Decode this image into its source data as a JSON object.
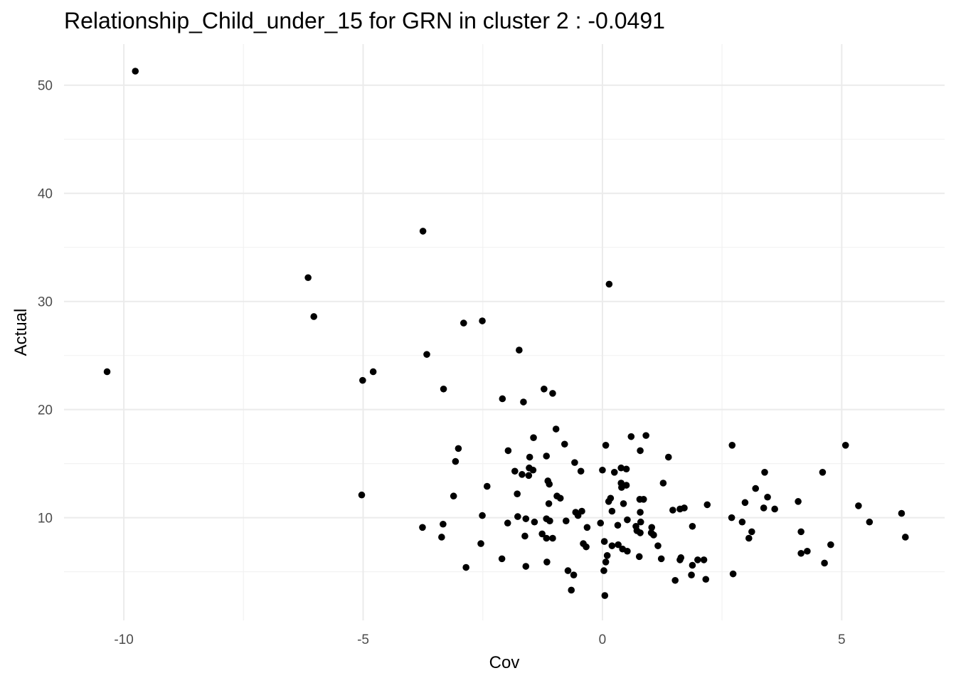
{
  "chart_data": {
    "type": "scatter",
    "title": "Relationship_Child_under_15 for GRN in cluster 2 : -0.0491",
    "xlabel": "Cov",
    "ylabel": "Actual",
    "xlim": [
      -11.25,
      7.15
    ],
    "ylim": [
      0.5,
      53.8
    ],
    "x_ticks": [
      -10,
      -5,
      0,
      5
    ],
    "x_tick_labels": [
      "-10",
      "-5",
      "0",
      "5"
    ],
    "y_ticks": [
      10,
      20,
      30,
      40,
      50
    ],
    "y_tick_labels": [
      "10",
      "20",
      "30",
      "40",
      "50"
    ],
    "grid": true,
    "point_color": "#000000",
    "points": [
      {
        "x": -9.76,
        "y": 51.3
      },
      {
        "x": -10.35,
        "y": 23.5
      },
      {
        "x": -6.15,
        "y": 32.2
      },
      {
        "x": -6.03,
        "y": 28.6
      },
      {
        "x": -5.01,
        "y": 22.7
      },
      {
        "x": -4.79,
        "y": 23.5
      },
      {
        "x": -5.03,
        "y": 12.1
      },
      {
        "x": -3.75,
        "y": 36.5
      },
      {
        "x": -3.67,
        "y": 25.1
      },
      {
        "x": -3.32,
        "y": 21.9
      },
      {
        "x": -2.9,
        "y": 28.0
      },
      {
        "x": -2.51,
        "y": 28.2
      },
      {
        "x": -1.74,
        "y": 25.5
      },
      {
        "x": -2.09,
        "y": 21.0
      },
      {
        "x": -1.65,
        "y": 20.7
      },
      {
        "x": -1.22,
        "y": 21.9
      },
      {
        "x": -1.04,
        "y": 21.5
      },
      {
        "x": 0.14,
        "y": 31.6
      },
      {
        "x": -0.97,
        "y": 18.2
      },
      {
        "x": -1.44,
        "y": 17.4
      },
      {
        "x": -0.79,
        "y": 16.8
      },
      {
        "x": -1.97,
        "y": 16.2
      },
      {
        "x": -1.52,
        "y": 15.6
      },
      {
        "x": -1.17,
        "y": 15.7
      },
      {
        "x": -1.53,
        "y": 14.6
      },
      {
        "x": -1.45,
        "y": 14.4
      },
      {
        "x": -1.83,
        "y": 14.3
      },
      {
        "x": -1.68,
        "y": 14.0
      },
      {
        "x": -1.54,
        "y": 13.9
      },
      {
        "x": -3.01,
        "y": 16.4
      },
      {
        "x": -3.07,
        "y": 15.2
      },
      {
        "x": -2.41,
        "y": 12.9
      },
      {
        "x": -3.11,
        "y": 12.0
      },
      {
        "x": -1.78,
        "y": 12.2
      },
      {
        "x": -1.14,
        "y": 13.4
      },
      {
        "x": -1.11,
        "y": 13.1
      },
      {
        "x": -0.95,
        "y": 12.0
      },
      {
        "x": -0.88,
        "y": 11.8
      },
      {
        "x": -1.12,
        "y": 11.3
      },
      {
        "x": -0.58,
        "y": 15.1
      },
      {
        "x": -0.45,
        "y": 14.3
      },
      {
        "x": 0.07,
        "y": 16.7
      },
      {
        "x": 0.6,
        "y": 17.5
      },
      {
        "x": 0.91,
        "y": 17.6
      },
      {
        "x": 0.79,
        "y": 16.2
      },
      {
        "x": 1.38,
        "y": 15.6
      },
      {
        "x": 0.39,
        "y": 14.6
      },
      {
        "x": 0.5,
        "y": 14.5
      },
      {
        "x": 0.25,
        "y": 14.2
      },
      {
        "x": 0.0,
        "y": 14.4
      },
      {
        "x": 0.39,
        "y": 13.2
      },
      {
        "x": 0.5,
        "y": 13.0
      },
      {
        "x": 0.4,
        "y": 12.8
      },
      {
        "x": 1.27,
        "y": 13.2
      },
      {
        "x": 0.17,
        "y": 11.8
      },
      {
        "x": 0.13,
        "y": 11.5
      },
      {
        "x": 0.44,
        "y": 11.3
      },
      {
        "x": 0.78,
        "y": 11.7
      },
      {
        "x": 0.86,
        "y": 11.7
      },
      {
        "x": 0.2,
        "y": 10.6
      },
      {
        "x": 0.79,
        "y": 10.5
      },
      {
        "x": -0.56,
        "y": 10.5
      },
      {
        "x": -0.43,
        "y": 10.6
      },
      {
        "x": -0.51,
        "y": 10.2
      },
      {
        "x": -2.51,
        "y": 10.2
      },
      {
        "x": -3.76,
        "y": 9.1
      },
      {
        "x": -3.33,
        "y": 9.4
      },
      {
        "x": -3.36,
        "y": 8.2
      },
      {
        "x": -1.98,
        "y": 9.5
      },
      {
        "x": -1.77,
        "y": 10.1
      },
      {
        "x": -1.6,
        "y": 9.9
      },
      {
        "x": -1.42,
        "y": 9.6
      },
      {
        "x": -1.17,
        "y": 9.9
      },
      {
        "x": -1.1,
        "y": 9.7
      },
      {
        "x": -0.76,
        "y": 9.7
      },
      {
        "x": -1.62,
        "y": 8.3
      },
      {
        "x": -1.26,
        "y": 8.5
      },
      {
        "x": -1.17,
        "y": 8.1
      },
      {
        "x": -1.04,
        "y": 8.1
      },
      {
        "x": -0.32,
        "y": 9.1
      },
      {
        "x": -0.04,
        "y": 9.5
      },
      {
        "x": 0.32,
        "y": 9.3
      },
      {
        "x": 0.52,
        "y": 9.8
      },
      {
        "x": 0.7,
        "y": 9.2
      },
      {
        "x": 0.72,
        "y": 8.8
      },
      {
        "x": 0.8,
        "y": 9.6
      },
      {
        "x": 0.79,
        "y": 8.6
      },
      {
        "x": 1.03,
        "y": 9.1
      },
      {
        "x": 1.02,
        "y": 8.6
      },
      {
        "x": 1.07,
        "y": 8.4
      },
      {
        "x": 1.16,
        "y": 7.4
      },
      {
        "x": 1.47,
        "y": 10.7
      },
      {
        "x": 1.62,
        "y": 10.8
      },
      {
        "x": 1.71,
        "y": 10.9
      },
      {
        "x": 1.88,
        "y": 9.2
      },
      {
        "x": 2.19,
        "y": 11.2
      },
      {
        "x": 0.04,
        "y": 7.8
      },
      {
        "x": 0.2,
        "y": 7.4
      },
      {
        "x": 0.33,
        "y": 7.5
      },
      {
        "x": 0.42,
        "y": 7.1
      },
      {
        "x": 0.52,
        "y": 6.9
      },
      {
        "x": 0.1,
        "y": 6.5
      },
      {
        "x": 0.77,
        "y": 6.4
      },
      {
        "x": 1.23,
        "y": 6.2
      },
      {
        "x": -0.4,
        "y": 7.6
      },
      {
        "x": -0.34,
        "y": 7.3
      },
      {
        "x": -2.54,
        "y": 7.6
      },
      {
        "x": -2.1,
        "y": 6.2
      },
      {
        "x": -2.85,
        "y": 5.4
      },
      {
        "x": -1.6,
        "y": 5.5
      },
      {
        "x": -1.16,
        "y": 5.9
      },
      {
        "x": 0.07,
        "y": 5.9
      },
      {
        "x": 0.03,
        "y": 5.1
      },
      {
        "x": -0.72,
        "y": 5.1
      },
      {
        "x": -0.6,
        "y": 4.7
      },
      {
        "x": -0.65,
        "y": 3.3
      },
      {
        "x": 0.05,
        "y": 2.8
      },
      {
        "x": 1.64,
        "y": 6.3
      },
      {
        "x": 1.62,
        "y": 6.1
      },
      {
        "x": 1.88,
        "y": 5.6
      },
      {
        "x": 1.99,
        "y": 6.1
      },
      {
        "x": 2.12,
        "y": 6.1
      },
      {
        "x": 1.86,
        "y": 4.7
      },
      {
        "x": 1.52,
        "y": 4.2
      },
      {
        "x": 2.16,
        "y": 4.3
      },
      {
        "x": 2.71,
        "y": 16.7
      },
      {
        "x": 2.7,
        "y": 10.0
      },
      {
        "x": 2.92,
        "y": 9.6
      },
      {
        "x": 2.98,
        "y": 11.4
      },
      {
        "x": 3.06,
        "y": 8.1
      },
      {
        "x": 3.12,
        "y": 8.7
      },
      {
        "x": 3.2,
        "y": 12.7
      },
      {
        "x": 3.39,
        "y": 14.2
      },
      {
        "x": 3.37,
        "y": 10.9
      },
      {
        "x": 3.45,
        "y": 11.9
      },
      {
        "x": 3.6,
        "y": 10.8
      },
      {
        "x": 2.73,
        "y": 4.8
      },
      {
        "x": 4.09,
        "y": 11.5
      },
      {
        "x": 4.15,
        "y": 8.7
      },
      {
        "x": 4.15,
        "y": 6.7
      },
      {
        "x": 4.28,
        "y": 6.9
      },
      {
        "x": 4.6,
        "y": 14.2
      },
      {
        "x": 4.64,
        "y": 5.8
      },
      {
        "x": 4.77,
        "y": 7.5
      },
      {
        "x": 5.08,
        "y": 16.7
      },
      {
        "x": 5.35,
        "y": 11.1
      },
      {
        "x": 5.58,
        "y": 9.6
      },
      {
        "x": 6.25,
        "y": 10.4
      },
      {
        "x": 6.33,
        "y": 8.2
      }
    ]
  }
}
